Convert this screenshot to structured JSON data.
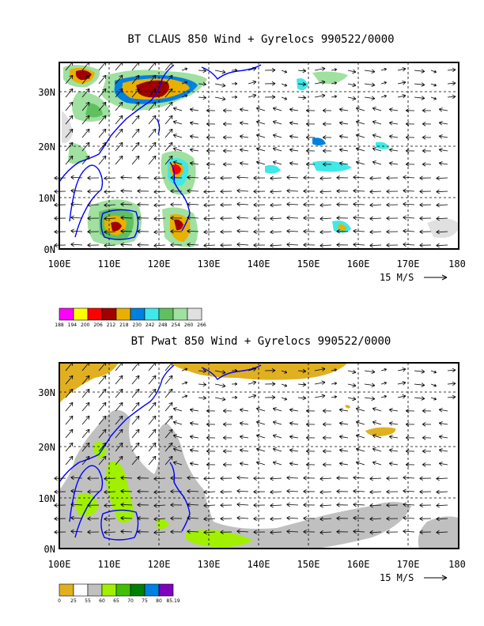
{
  "chart_data": [
    {
      "type": "map",
      "title": "BT CLAUS 850 Wind + Gyrelocs 990522/0000",
      "x_ticks": [
        "100E",
        "110E",
        "120E",
        "130E",
        "140E",
        "150E",
        "160E",
        "170E",
        "180"
      ],
      "y_ticks": [
        "30N",
        "20N",
        "10N",
        "0N"
      ],
      "vector_scale_label": "15 M/S",
      "legend": {
        "labels": [
          "188",
          "194",
          "200",
          "206",
          "212",
          "218",
          "230",
          "242",
          "248",
          "254",
          "260",
          "266"
        ],
        "colors": [
          "#ff00ff",
          "#ffff00",
          "#ff0000",
          "#a00000",
          "#e8b000",
          "#0080e0",
          "#40e8e8",
          "#60c060",
          "#a0e0a0",
          "#e0e0e0"
        ]
      },
      "features": [
        "brightness temperature shading",
        "850 hPa wind vectors",
        "coastlines"
      ]
    },
    {
      "type": "map",
      "title": "BT Pwat 850 Wind + Gyrelocs 990522/0000",
      "x_ticks": [
        "100E",
        "110E",
        "120E",
        "130E",
        "140E",
        "150E",
        "160E",
        "170E",
        "180"
      ],
      "y_ticks": [
        "30N",
        "20N",
        "10N",
        "0N"
      ],
      "vector_scale_label": "15 M/S",
      "legend": {
        "labels": [
          "0",
          "25",
          "55",
          "60",
          "65",
          "70",
          "75",
          "80",
          "85.19"
        ],
        "colors": [
          "#e0b020",
          "#ffffff",
          "#c0c0c0",
          "#a0f000",
          "#40c000",
          "#008000",
          "#0080e0",
          "#8000c0"
        ]
      },
      "features": [
        "precipitable water shading",
        "850 hPa wind vectors",
        "coastlines"
      ]
    }
  ]
}
